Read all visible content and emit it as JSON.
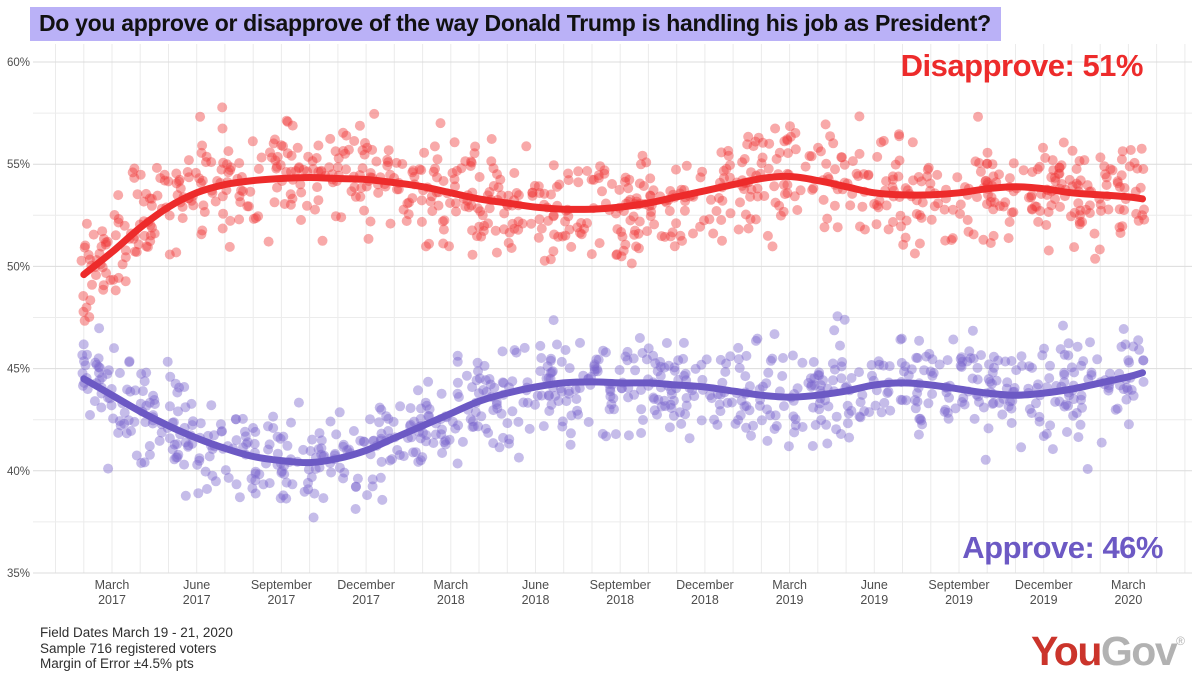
{
  "title": "Do you approve or disapprove of the way Donald Trump is handling his job as President?",
  "annotations": {
    "disapprove": "Disapprove: 51%",
    "approve": "Approve: 46%"
  },
  "footer": {
    "lines": [
      "Field Dates March 19 - 21, 2020",
      "Sample 716 registered voters",
      "Margin of Error ±4.5% pts"
    ]
  },
  "logo": {
    "part1": "You",
    "part2": "Gov",
    "reg": "®"
  },
  "colors": {
    "title_bg": "#bab1f7",
    "disapprove_line": "#ed2b2b",
    "disapprove_dot": "#ee3b3b",
    "approve_line": "#6c59c4",
    "approve_dot": "#7a67ce",
    "grid_major": "#dcdcdc",
    "grid_minor": "#ececec",
    "grid_vertical": "#ebebeb",
    "axis_text": "#4e4e4e",
    "logo_red": "#cb342b",
    "logo_gray": "#b2b2b2"
  },
  "chart_data": {
    "type": "scatter",
    "title": "Do you approve or disapprove of the way Donald Trump is handling his job as President?",
    "grid": true,
    "x": {
      "unit": "months since Feb 2017",
      "tick_months": [
        1,
        4,
        7,
        10,
        13,
        16,
        19,
        22,
        25,
        28,
        31,
        34,
        37
      ],
      "tick_labels": [
        [
          "March",
          "2017"
        ],
        [
          "June",
          "2017"
        ],
        [
          "September",
          "2017"
        ],
        [
          "December",
          "2017"
        ],
        [
          "March",
          "2018"
        ],
        [
          "June",
          "2018"
        ],
        [
          "September",
          "2018"
        ],
        [
          "December",
          "2018"
        ],
        [
          "March",
          "2019"
        ],
        [
          "June",
          "2019"
        ],
        [
          "September",
          "2019"
        ],
        [
          "December",
          "2019"
        ],
        [
          "March",
          "2020"
        ]
      ]
    },
    "y": {
      "tick_values": [
        35,
        40,
        45,
        50,
        55,
        60
      ],
      "tick_labels": [
        "35%",
        "40%",
        "45%",
        "50%",
        "55%",
        "60%"
      ],
      "minor_step_pct": 2.5,
      "range_pct": [
        34.1,
        60.9
      ]
    },
    "series": [
      {
        "name": "Disapprove",
        "latest_value_pct": 51,
        "label": "Disapprove: 51%",
        "trend_pct_by_month": [
          [
            0,
            49.6
          ],
          [
            1,
            50.7
          ],
          [
            2,
            51.9
          ],
          [
            3,
            52.9
          ],
          [
            4,
            53.6
          ],
          [
            5,
            54.0
          ],
          [
            6,
            54.2
          ],
          [
            7,
            54.3
          ],
          [
            8,
            54.35
          ],
          [
            9,
            54.3
          ],
          [
            10,
            54.25
          ],
          [
            11,
            54.1
          ],
          [
            12,
            53.9
          ],
          [
            13,
            53.6
          ],
          [
            14,
            53.3
          ],
          [
            15,
            53.1
          ],
          [
            16,
            52.9
          ],
          [
            17,
            52.8
          ],
          [
            18,
            52.8
          ],
          [
            19,
            52.9
          ],
          [
            20,
            53.1
          ],
          [
            21,
            53.4
          ],
          [
            22,
            53.7
          ],
          [
            23,
            54.0
          ],
          [
            24,
            54.3
          ],
          [
            25,
            54.4
          ],
          [
            26,
            54.2
          ],
          [
            27,
            53.9
          ],
          [
            28,
            53.6
          ],
          [
            29,
            53.5
          ],
          [
            30,
            53.5
          ],
          [
            31,
            53.6
          ],
          [
            32,
            53.8
          ],
          [
            33,
            53.9
          ],
          [
            34,
            53.8
          ],
          [
            35,
            53.6
          ],
          [
            36,
            53.5
          ],
          [
            37,
            53.4
          ],
          [
            37.5,
            53.3
          ]
        ]
      },
      {
        "name": "Approve",
        "latest_value_pct": 46,
        "label": "Approve: 46%",
        "trend_pct_by_month": [
          [
            0,
            44.5
          ],
          [
            1,
            43.7
          ],
          [
            2,
            42.9
          ],
          [
            3,
            42.2
          ],
          [
            4,
            41.6
          ],
          [
            5,
            41.1
          ],
          [
            6,
            40.7
          ],
          [
            7,
            40.5
          ],
          [
            8,
            40.4
          ],
          [
            9,
            40.6
          ],
          [
            10,
            41.0
          ],
          [
            11,
            41.6
          ],
          [
            12,
            42.2
          ],
          [
            13,
            42.8
          ],
          [
            14,
            43.4
          ],
          [
            15,
            43.8
          ],
          [
            16,
            44.1
          ],
          [
            17,
            44.3
          ],
          [
            18,
            44.35
          ],
          [
            19,
            44.3
          ],
          [
            20,
            44.3
          ],
          [
            21,
            44.2
          ],
          [
            22,
            44.1
          ],
          [
            23,
            43.9
          ],
          [
            24,
            43.7
          ],
          [
            25,
            43.6
          ],
          [
            26,
            43.7
          ],
          [
            27,
            43.9
          ],
          [
            28,
            44.2
          ],
          [
            29,
            44.3
          ],
          [
            30,
            44.2
          ],
          [
            31,
            44.0
          ],
          [
            32,
            43.8
          ],
          [
            33,
            43.7
          ],
          [
            34,
            43.8
          ],
          [
            35,
            44.0
          ],
          [
            36,
            44.3
          ],
          [
            37,
            44.6
          ],
          [
            37.5,
            44.8
          ]
        ]
      }
    ],
    "scatter_cloud": {
      "points_per_series": 850,
      "noise_std_pct": 1.25,
      "seed": 20200321,
      "x_month_range": [
        -0.1,
        37.6
      ],
      "dot_radius_px": 5,
      "dot_opacity": 0.44,
      "clamp_pct": {
        "Disapprove": [
          46.5,
          59.0
        ],
        "Approve": [
          36.4,
          48.3
        ]
      }
    }
  }
}
